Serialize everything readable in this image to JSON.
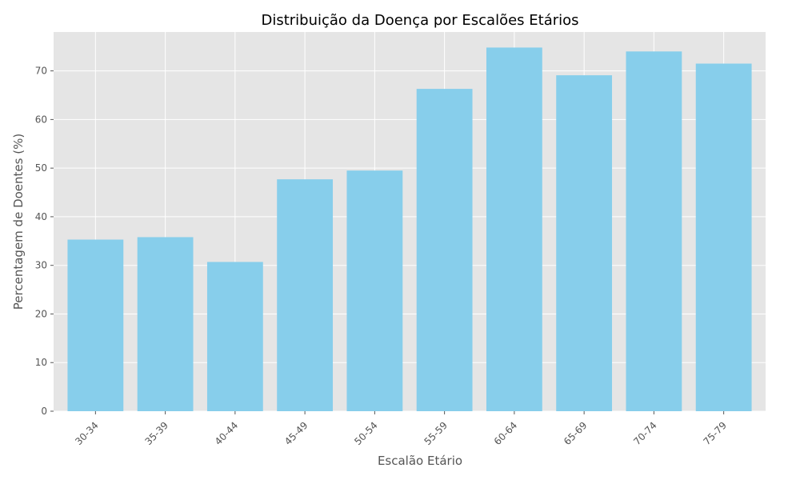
{
  "chart_data": {
    "type": "bar",
    "title": "Distribuição da Doença por Escalões Etários",
    "xlabel": "Escalão Etário",
    "ylabel": "Percentagem de Doentes (%)",
    "categories": [
      "30-34",
      "35-39",
      "40-44",
      "45-49",
      "50-54",
      "55-59",
      "60-64",
      "65-69",
      "70-74",
      "75-79"
    ],
    "values": [
      35.3,
      35.8,
      30.7,
      47.7,
      49.5,
      66.3,
      74.8,
      69.1,
      74.0,
      71.5
    ],
    "ylim": [
      0,
      78
    ],
    "yticks": [
      0,
      10,
      20,
      30,
      40,
      50,
      60,
      70
    ],
    "grid": true,
    "legend": "none",
    "colors": {
      "bar": "#87CEEB",
      "plot_background": "#E5E5E5",
      "grid": "#FFFFFF"
    }
  }
}
